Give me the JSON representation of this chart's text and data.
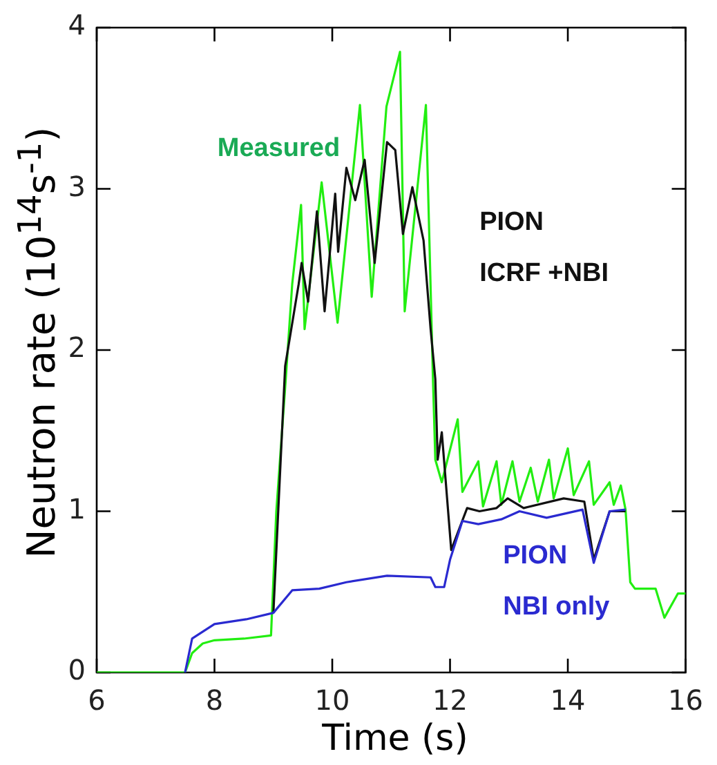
{
  "chart_data": {
    "type": "line",
    "xlabel": "Time (s)",
    "ylabel": "Neutron rate (10$^{14}$s$^{-1}$)",
    "xlim": [
      6,
      16
    ],
    "xticks": [
      6,
      8,
      10,
      12,
      14,
      16
    ],
    "ylim": [
      0,
      4
    ],
    "yticks": [
      0,
      1,
      2,
      3,
      4
    ],
    "grid": false,
    "legend": false,
    "marker": "none",
    "line_style": "solid",
    "series": [
      {
        "name": "Measured",
        "color": "#22ee11",
        "x": [
          6,
          7.5,
          7.62,
          7.8,
          8.0,
          8.5,
          8.96,
          9.05,
          9.21,
          9.32,
          9.47,
          9.53,
          9.82,
          10.09,
          10.47,
          10.67,
          10.92,
          11.15,
          11.23,
          11.59,
          11.71,
          11.75,
          11.86,
          12.13,
          12.21,
          12.48,
          12.56,
          12.79,
          12.87,
          13.06,
          13.18,
          13.37,
          13.49,
          13.68,
          13.76,
          14.0,
          14.1,
          14.36,
          14.44,
          14.71,
          14.78,
          14.9,
          14.98,
          15.06,
          15.14,
          15.49,
          15.64,
          15.87,
          16.0
        ],
        "values": [
          0,
          0,
          0.12,
          0.18,
          0.2,
          0.21,
          0.23,
          1.0,
          1.82,
          2.41,
          2.9,
          2.13,
          3.04,
          2.17,
          3.52,
          2.33,
          3.51,
          3.85,
          2.24,
          3.52,
          1.82,
          1.32,
          1.18,
          1.57,
          1.12,
          1.31,
          1.03,
          1.31,
          1.04,
          1.31,
          1.06,
          1.27,
          1.06,
          1.32,
          1.08,
          1.39,
          1.1,
          1.31,
          1.04,
          1.18,
          1.04,
          1.16,
          1.01,
          0.56,
          0.52,
          0.52,
          0.34,
          0.49,
          0.49
        ]
      },
      {
        "name": "PION\nICRF +NBI",
        "color": "#111111",
        "x": [
          9.0,
          9.2,
          9.43,
          9.48,
          9.59,
          9.74,
          9.87,
          10.05,
          10.1,
          10.24,
          10.39,
          10.55,
          10.72,
          10.93,
          11.07,
          11.2,
          11.36,
          11.55,
          11.67,
          11.75,
          11.79,
          11.86,
          12.02,
          12.29,
          12.5,
          12.79,
          12.98,
          13.25,
          13.93,
          14.28,
          14.44,
          14.71,
          14.98
        ],
        "values": [
          0.37,
          1.9,
          2.41,
          2.54,
          2.3,
          2.86,
          2.24,
          2.97,
          2.61,
          3.13,
          2.93,
          3.18,
          2.54,
          3.29,
          3.24,
          2.72,
          3.01,
          2.68,
          2.13,
          1.82,
          1.32,
          1.49,
          0.76,
          1.02,
          1.0,
          1.02,
          1.08,
          1.02,
          1.08,
          1.06,
          0.7,
          1.0,
          1.0
        ]
      },
      {
        "name": "PION\nNBI only",
        "color": "#2a2ad0",
        "x": [
          7.5,
          7.62,
          8.0,
          8.54,
          9.0,
          9.32,
          9.78,
          10.24,
          10.93,
          11.67,
          11.75,
          11.9,
          12.0,
          12.21,
          12.48,
          12.87,
          13.18,
          13.64,
          14.25,
          14.44,
          14.71,
          14.98
        ],
        "values": [
          0,
          0.21,
          0.3,
          0.33,
          0.37,
          0.51,
          0.52,
          0.56,
          0.6,
          0.59,
          0.53,
          0.53,
          0.7,
          0.94,
          0.92,
          0.95,
          1.0,
          0.96,
          1.01,
          0.68,
          1.0,
          1.01
        ]
      }
    ]
  }
}
